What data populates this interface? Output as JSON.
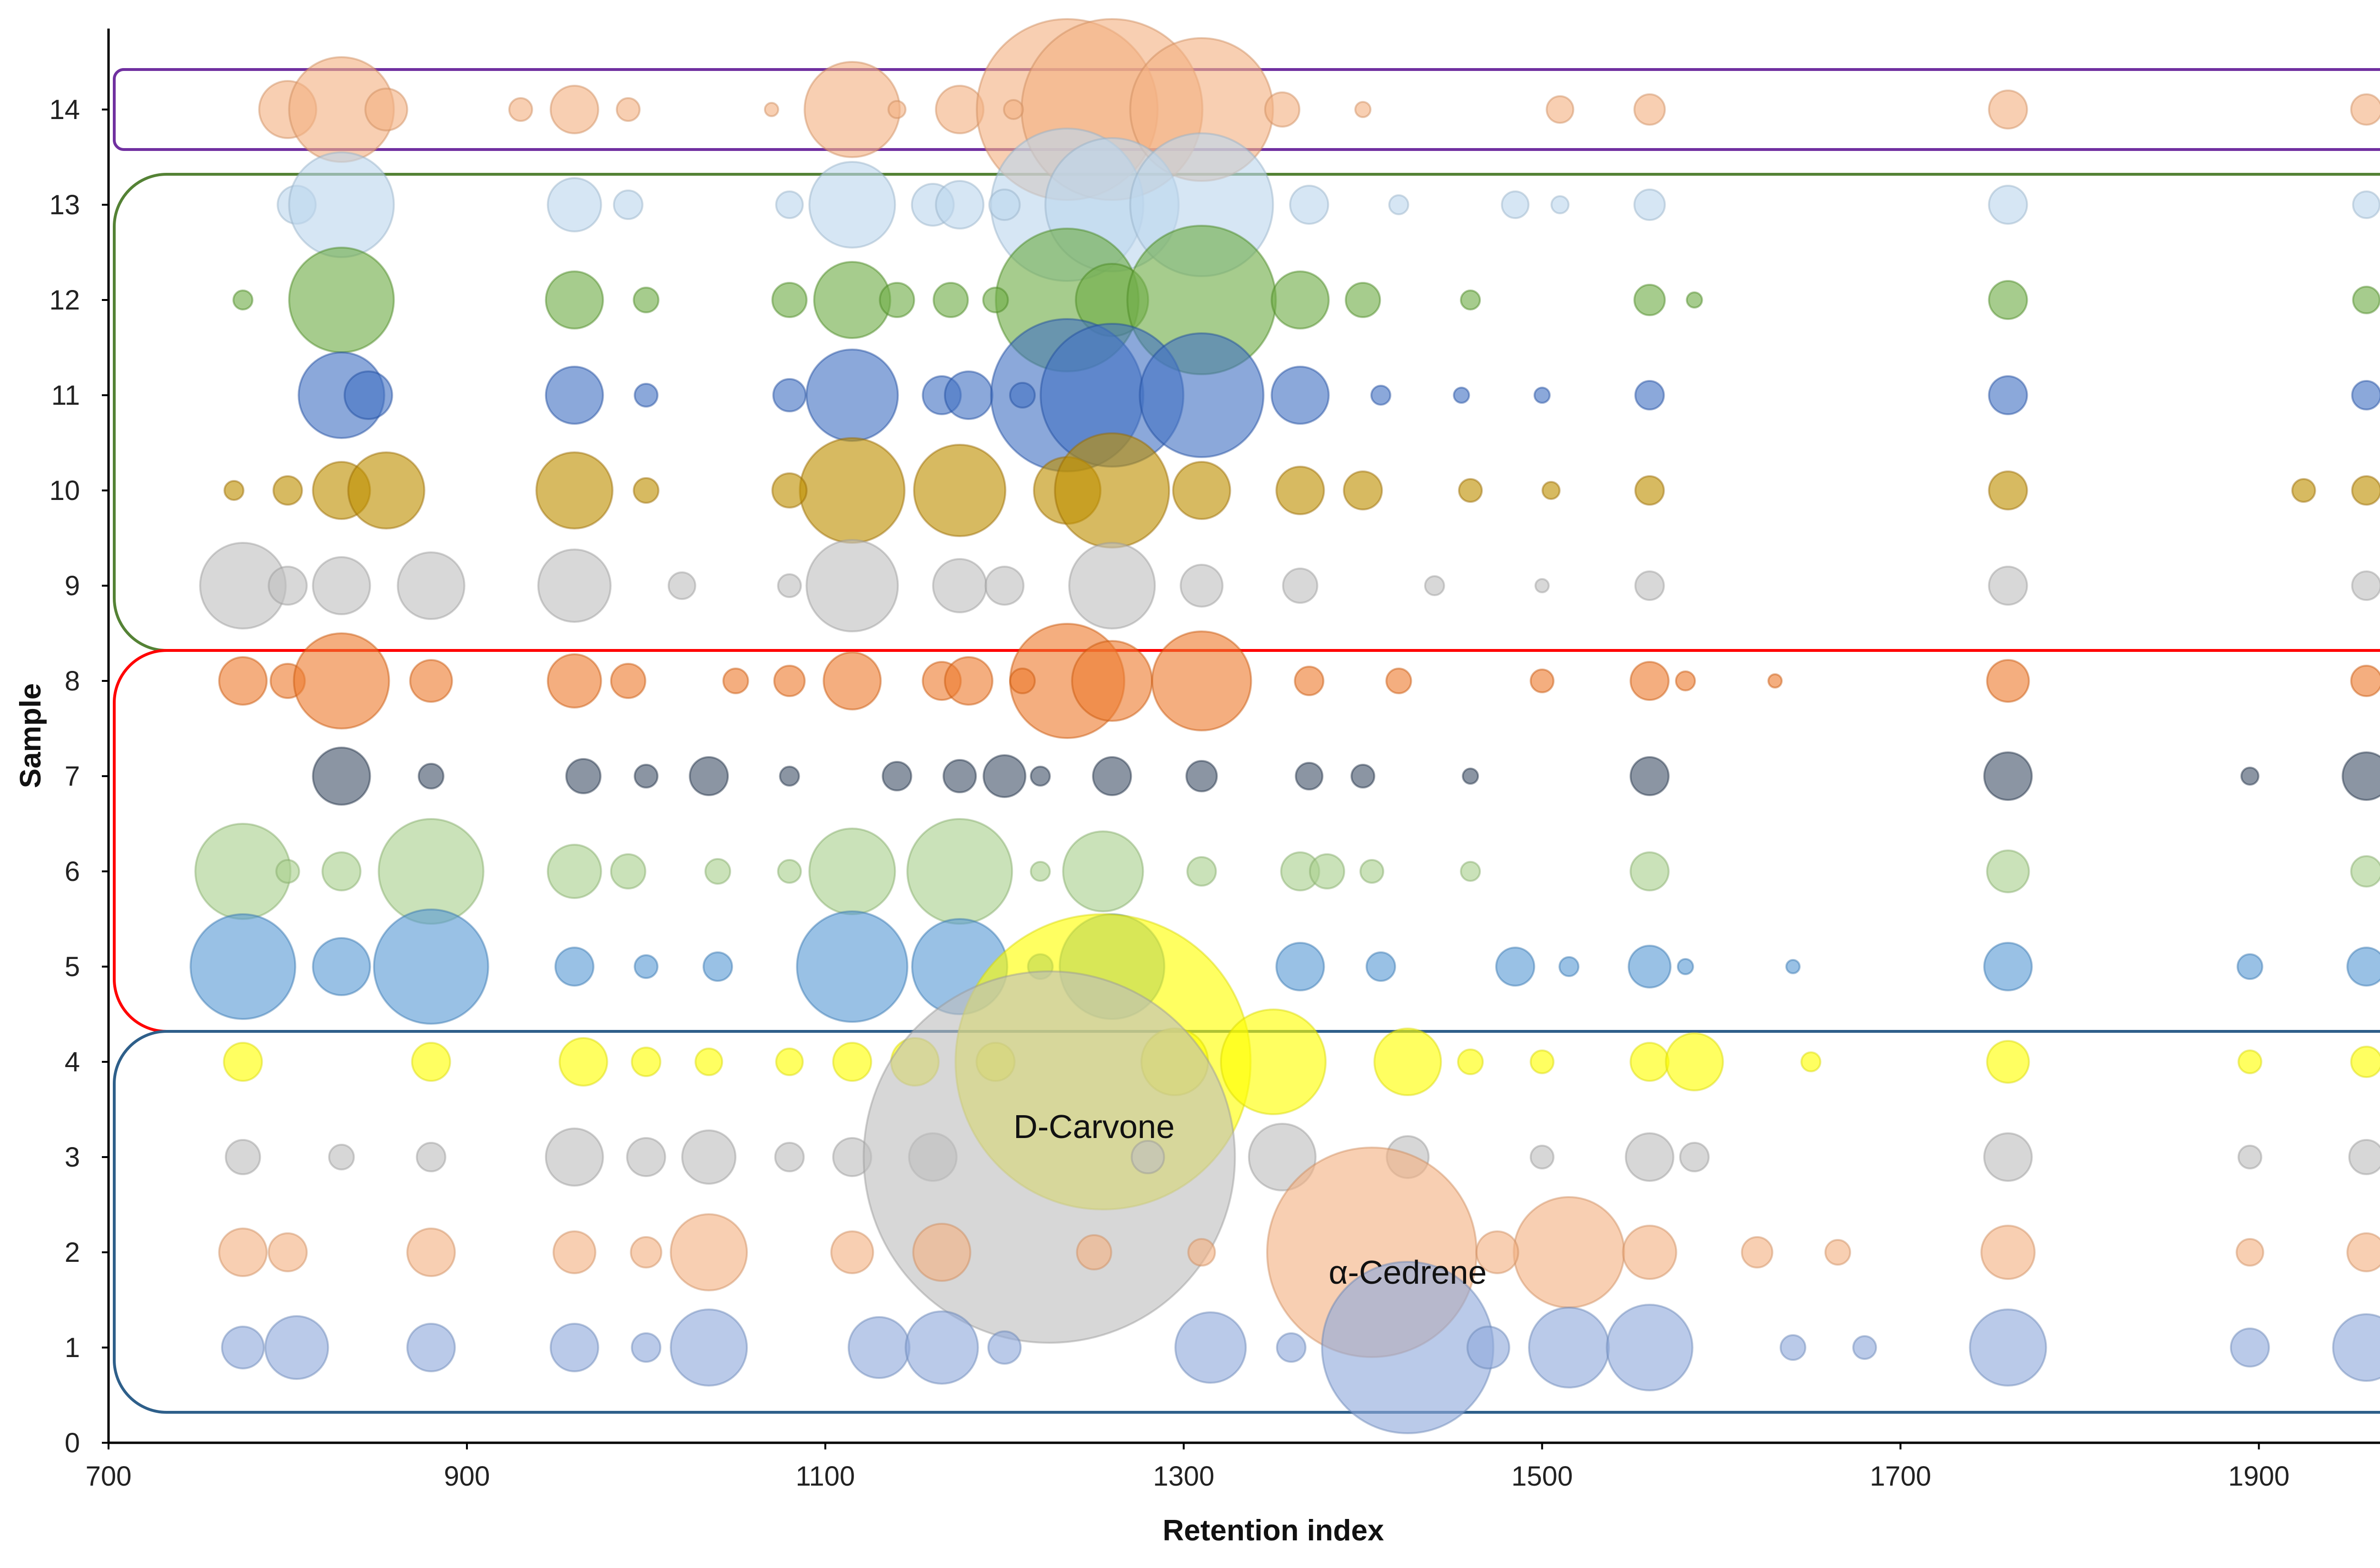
{
  "chart_data": {
    "type": "bubble",
    "title": "",
    "xlabel": "Retention index",
    "ylabel": "Sample",
    "xlim": [
      700,
      2000
    ],
    "ylim": [
      0,
      14.85
    ],
    "xticks": [
      "700",
      "900",
      "1100",
      "1300",
      "1500",
      "1700",
      "1900"
    ],
    "xtick_values": [
      700,
      900,
      1100,
      1300,
      1500,
      1700,
      1900
    ],
    "yticks": [
      "0",
      "1",
      "2",
      "3",
      "4",
      "5",
      "6",
      "7",
      "8",
      "9",
      "10",
      "11",
      "12",
      "13",
      "14"
    ],
    "grid": false,
    "groups": [
      {
        "samples": [
          14
        ],
        "color": "#7030a0"
      },
      {
        "samples": [
          9,
          10,
          11,
          12,
          13
        ],
        "color": "#548235"
      },
      {
        "samples": [
          5,
          6,
          7,
          8
        ],
        "color": "#ff0000"
      },
      {
        "samples": [
          1,
          2,
          3,
          4
        ],
        "color": "#2e5f8a"
      }
    ],
    "series": [
      {
        "sample": 14,
        "color": "#f4b183",
        "points": [
          [
            800,
            0.3
          ],
          [
            830,
            0.55
          ],
          [
            855,
            0.22
          ],
          [
            960,
            0.25
          ],
          [
            1115,
            0.5
          ],
          [
            1175,
            0.25
          ],
          [
            1235,
            0.95
          ],
          [
            1260,
            0.95
          ],
          [
            1310,
            0.75
          ],
          [
            1355,
            0.18
          ],
          [
            1510,
            0.14
          ],
          [
            1560,
            0.16
          ],
          [
            1760,
            0.2
          ],
          [
            1960,
            0.16
          ],
          [
            1205,
            0.1
          ],
          [
            990,
            0.12
          ],
          [
            930,
            0.12
          ],
          [
            1070,
            0.07
          ],
          [
            1140,
            0.09
          ],
          [
            1400,
            0.08
          ]
        ]
      },
      {
        "sample": 13,
        "color": "#bdd7ee",
        "points": [
          [
            805,
            0.2
          ],
          [
            830,
            0.55
          ],
          [
            960,
            0.28
          ],
          [
            990,
            0.15
          ],
          [
            1115,
            0.45
          ],
          [
            1160,
            0.22
          ],
          [
            1175,
            0.25
          ],
          [
            1235,
            0.8
          ],
          [
            1260,
            0.7
          ],
          [
            1310,
            0.75
          ],
          [
            1370,
            0.2
          ],
          [
            1485,
            0.14
          ],
          [
            1560,
            0.16
          ],
          [
            1760,
            0.2
          ],
          [
            1960,
            0.14
          ],
          [
            1080,
            0.14
          ],
          [
            1200,
            0.16
          ],
          [
            1420,
            0.1
          ],
          [
            1510,
            0.09
          ]
        ]
      },
      {
        "sample": 12,
        "color": "#70ad47",
        "points": [
          [
            775,
            0.1
          ],
          [
            830,
            0.55
          ],
          [
            960,
            0.3
          ],
          [
            1115,
            0.4
          ],
          [
            1140,
            0.18
          ],
          [
            1170,
            0.18
          ],
          [
            1235,
            0.75
          ],
          [
            1260,
            0.38
          ],
          [
            1310,
            0.78
          ],
          [
            1365,
            0.3
          ],
          [
            1400,
            0.18
          ],
          [
            1560,
            0.16
          ],
          [
            1760,
            0.2
          ],
          [
            1960,
            0.14
          ],
          [
            1080,
            0.18
          ],
          [
            1000,
            0.13
          ],
          [
            1195,
            0.13
          ],
          [
            1460,
            0.1
          ],
          [
            1585,
            0.08
          ]
        ]
      },
      {
        "sample": 11,
        "color": "#4472c4",
        "points": [
          [
            830,
            0.45
          ],
          [
            845,
            0.25
          ],
          [
            960,
            0.3
          ],
          [
            1115,
            0.48
          ],
          [
            1165,
            0.2
          ],
          [
            1180,
            0.25
          ],
          [
            1235,
            0.8
          ],
          [
            1260,
            0.75
          ],
          [
            1310,
            0.65
          ],
          [
            1365,
            0.3
          ],
          [
            1560,
            0.15
          ],
          [
            1760,
            0.2
          ],
          [
            1960,
            0.15
          ],
          [
            1080,
            0.17
          ],
          [
            1000,
            0.12
          ],
          [
            1210,
            0.13
          ],
          [
            1410,
            0.1
          ],
          [
            1455,
            0.08
          ],
          [
            1500,
            0.08
          ]
        ]
      },
      {
        "sample": 10,
        "color": "#bf9000",
        "points": [
          [
            770,
            0.1
          ],
          [
            800,
            0.15
          ],
          [
            830,
            0.3
          ],
          [
            855,
            0.4
          ],
          [
            960,
            0.4
          ],
          [
            1115,
            0.55
          ],
          [
            1175,
            0.48
          ],
          [
            1235,
            0.35
          ],
          [
            1260,
            0.6
          ],
          [
            1310,
            0.3
          ],
          [
            1365,
            0.25
          ],
          [
            1400,
            0.2
          ],
          [
            1560,
            0.15
          ],
          [
            1760,
            0.2
          ],
          [
            1925,
            0.12
          ],
          [
            1960,
            0.15
          ],
          [
            1080,
            0.18
          ],
          [
            1000,
            0.13
          ],
          [
            1460,
            0.12
          ],
          [
            1505,
            0.09
          ]
        ]
      },
      {
        "sample": 9,
        "color": "#c0c0c0",
        "points": [
          [
            775,
            0.45
          ],
          [
            800,
            0.2
          ],
          [
            830,
            0.3
          ],
          [
            880,
            0.35
          ],
          [
            960,
            0.38
          ],
          [
            1115,
            0.48
          ],
          [
            1175,
            0.28
          ],
          [
            1200,
            0.2
          ],
          [
            1260,
            0.45
          ],
          [
            1310,
            0.22
          ],
          [
            1365,
            0.18
          ],
          [
            1560,
            0.15
          ],
          [
            1760,
            0.2
          ],
          [
            1960,
            0.15
          ],
          [
            1020,
            0.14
          ],
          [
            1080,
            0.12
          ],
          [
            1440,
            0.1
          ],
          [
            1500,
            0.07
          ]
        ]
      },
      {
        "sample": 8,
        "color": "#ed7d31",
        "points": [
          [
            775,
            0.25
          ],
          [
            800,
            0.18
          ],
          [
            830,
            0.5
          ],
          [
            880,
            0.22
          ],
          [
            960,
            0.28
          ],
          [
            990,
            0.18
          ],
          [
            1115,
            0.3
          ],
          [
            1165,
            0.2
          ],
          [
            1180,
            0.25
          ],
          [
            1235,
            0.6
          ],
          [
            1260,
            0.42
          ],
          [
            1310,
            0.52
          ],
          [
            1370,
            0.15
          ],
          [
            1420,
            0.13
          ],
          [
            1560,
            0.2
          ],
          [
            1760,
            0.22
          ],
          [
            1960,
            0.16
          ],
          [
            1080,
            0.16
          ],
          [
            1050,
            0.13
          ],
          [
            1210,
            0.13
          ],
          [
            1500,
            0.12
          ],
          [
            1580,
            0.1
          ],
          [
            1630,
            0.07
          ]
        ]
      },
      {
        "sample": 7,
        "color": "#44546a",
        "points": [
          [
            830,
            0.3
          ],
          [
            880,
            0.13
          ],
          [
            965,
            0.18
          ],
          [
            1000,
            0.12
          ],
          [
            1035,
            0.2
          ],
          [
            1140,
            0.15
          ],
          [
            1175,
            0.17
          ],
          [
            1200,
            0.22
          ],
          [
            1260,
            0.2
          ],
          [
            1310,
            0.16
          ],
          [
            1370,
            0.14
          ],
          [
            1400,
            0.12
          ],
          [
            1560,
            0.2
          ],
          [
            1760,
            0.25
          ],
          [
            1960,
            0.25
          ],
          [
            1895,
            0.09
          ],
          [
            1080,
            0.1
          ],
          [
            1220,
            0.1
          ],
          [
            1460,
            0.08
          ]
        ]
      },
      {
        "sample": 6,
        "color": "#a9d18e",
        "points": [
          [
            775,
            0.5
          ],
          [
            800,
            0.12
          ],
          [
            830,
            0.2
          ],
          [
            880,
            0.55
          ],
          [
            960,
            0.28
          ],
          [
            990,
            0.18
          ],
          [
            1115,
            0.45
          ],
          [
            1175,
            0.55
          ],
          [
            1255,
            0.42
          ],
          [
            1310,
            0.15
          ],
          [
            1365,
            0.2
          ],
          [
            1380,
            0.18
          ],
          [
            1405,
            0.12
          ],
          [
            1560,
            0.2
          ],
          [
            1760,
            0.22
          ],
          [
            1960,
            0.16
          ],
          [
            1040,
            0.13
          ],
          [
            1080,
            0.12
          ],
          [
            1220,
            0.1
          ],
          [
            1460,
            0.1
          ]
        ]
      },
      {
        "sample": 5,
        "color": "#5b9bd5",
        "points": [
          [
            775,
            0.55
          ],
          [
            830,
            0.3
          ],
          [
            880,
            0.6
          ],
          [
            960,
            0.2
          ],
          [
            1115,
            0.58
          ],
          [
            1175,
            0.5
          ],
          [
            1260,
            0.55
          ],
          [
            1365,
            0.25
          ],
          [
            1410,
            0.15
          ],
          [
            1485,
            0.2
          ],
          [
            1560,
            0.22
          ],
          [
            1760,
            0.25
          ],
          [
            1895,
            0.13
          ],
          [
            1960,
            0.2
          ],
          [
            1040,
            0.15
          ],
          [
            1000,
            0.12
          ],
          [
            1220,
            0.13
          ],
          [
            1515,
            0.1
          ],
          [
            1580,
            0.08
          ],
          [
            1640,
            0.07
          ]
        ]
      },
      {
        "sample": 4,
        "color": "#ffff00",
        "points": [
          [
            775,
            0.2
          ],
          [
            880,
            0.2
          ],
          [
            965,
            0.25
          ],
          [
            1000,
            0.15
          ],
          [
            1115,
            0.2
          ],
          [
            1150,
            0.25
          ],
          [
            1255,
            1.55
          ],
          [
            1295,
            0.35
          ],
          [
            1350,
            0.55
          ],
          [
            1425,
            0.35
          ],
          [
            1560,
            0.2
          ],
          [
            1585,
            0.3
          ],
          [
            1760,
            0.22
          ],
          [
            1895,
            0.12
          ],
          [
            1960,
            0.16
          ],
          [
            1035,
            0.14
          ],
          [
            1080,
            0.14
          ],
          [
            1195,
            0.2
          ],
          [
            1460,
            0.13
          ],
          [
            1500,
            0.12
          ],
          [
            1650,
            0.1
          ]
        ]
      },
      {
        "sample": 3,
        "color": "#bfbfbf",
        "points": [
          [
            775,
            0.18
          ],
          [
            830,
            0.13
          ],
          [
            880,
            0.15
          ],
          [
            960,
            0.3
          ],
          [
            1035,
            0.28
          ],
          [
            1080,
            0.15
          ],
          [
            1115,
            0.2
          ],
          [
            1160,
            0.25
          ],
          [
            1225,
            1.95
          ],
          [
            1355,
            0.35
          ],
          [
            1425,
            0.22
          ],
          [
            1560,
            0.25
          ],
          [
            1585,
            0.15
          ],
          [
            1760,
            0.25
          ],
          [
            1895,
            0.12
          ],
          [
            1960,
            0.18
          ],
          [
            1000,
            0.2
          ],
          [
            1280,
            0.17
          ],
          [
            1500,
            0.12
          ]
        ]
      },
      {
        "sample": 2,
        "color": "#f4b183",
        "points": [
          [
            775,
            0.25
          ],
          [
            800,
            0.2
          ],
          [
            880,
            0.25
          ],
          [
            960,
            0.22
          ],
          [
            1035,
            0.4
          ],
          [
            1115,
            0.22
          ],
          [
            1165,
            0.3
          ],
          [
            1250,
            0.18
          ],
          [
            1405,
            1.1
          ],
          [
            1515,
            0.58
          ],
          [
            1560,
            0.28
          ],
          [
            1760,
            0.28
          ],
          [
            1895,
            0.14
          ],
          [
            1960,
            0.2
          ],
          [
            1000,
            0.16
          ],
          [
            1310,
            0.14
          ],
          [
            1475,
            0.22
          ],
          [
            1620,
            0.16
          ],
          [
            1665,
            0.13
          ]
        ]
      },
      {
        "sample": 1,
        "color": "#8faadc",
        "points": [
          [
            775,
            0.22
          ],
          [
            805,
            0.33
          ],
          [
            880,
            0.25
          ],
          [
            960,
            0.25
          ],
          [
            1035,
            0.4
          ],
          [
            1130,
            0.32
          ],
          [
            1165,
            0.38
          ],
          [
            1315,
            0.37
          ],
          [
            1425,
            0.9
          ],
          [
            1515,
            0.42
          ],
          [
            1560,
            0.45
          ],
          [
            1760,
            0.4
          ],
          [
            1895,
            0.2
          ],
          [
            1960,
            0.35
          ],
          [
            1000,
            0.15
          ],
          [
            1200,
            0.17
          ],
          [
            1360,
            0.15
          ],
          [
            1470,
            0.22
          ],
          [
            1640,
            0.13
          ],
          [
            1680,
            0.12
          ]
        ]
      }
    ],
    "annotations": [
      {
        "text": "D-Carvone",
        "x": 1250,
        "y": 3.2
      },
      {
        "text": "α-Cedrene",
        "x": 1425,
        "y": 1.67
      }
    ]
  }
}
